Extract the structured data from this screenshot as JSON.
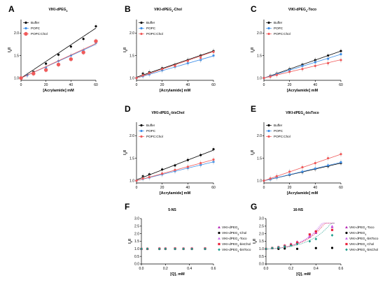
{
  "colors": {
    "buffer": "#000000",
    "popc": "#3d8ee8",
    "popcchol": "#f05a5a",
    "magenta": "#b21fb2",
    "black": "#000000",
    "violet": "#cc66ee",
    "red": "#e8243c",
    "teal": "#1a9c8a"
  },
  "chart_data": [
    {
      "panel": "A",
      "type": "scatter",
      "title": "VIKI-dPEG4",
      "xlabel": "[Acrylamide] mM",
      "ylabel": "I0/I",
      "xlim": [
        0,
        60
      ],
      "ylim": [
        0.95,
        2.3
      ],
      "xticks": [
        "0",
        "20",
        "40",
        "60"
      ],
      "yticks": [
        "1.0",
        "1.5",
        "2.0"
      ],
      "legend_position": "top-left",
      "series": [
        {
          "name": "Buffer",
          "color_key": "buffer",
          "fit": [
            1.0,
            0.0185
          ],
          "marker": "circle",
          "x": [
            0,
            5,
            10,
            20,
            30,
            40,
            50,
            60
          ],
          "y": [
            1.0,
            1.07,
            1.14,
            1.32,
            1.52,
            1.7,
            1.87,
            2.15
          ]
        },
        {
          "name": "POPC",
          "color_key": "popc",
          "fit": [
            1.0,
            0.0125
          ],
          "marker": "circle",
          "x": [
            0,
            5,
            10,
            20,
            30,
            40,
            50,
            60
          ],
          "y": [
            1.0,
            1.06,
            1.1,
            1.23,
            1.38,
            1.5,
            1.62,
            1.78
          ]
        },
        {
          "name": "POPC:Chol",
          "color_key": "popcchol",
          "fit": [
            1.0,
            0.0128
          ],
          "marker": "bigcircle",
          "x": [
            0,
            10,
            20,
            30,
            40,
            50,
            60
          ],
          "y": [
            1.0,
            1.1,
            1.18,
            1.3,
            1.42,
            1.57,
            1.82
          ]
        }
      ]
    },
    {
      "panel": "B",
      "type": "scatter",
      "title": "VIKI-dPEG4-Chol",
      "xlabel": "[Acrylamide] mM",
      "ylabel": "I0/I",
      "xlim": [
        0,
        60
      ],
      "ylim": [
        0.95,
        2.3
      ],
      "xticks": [
        "0",
        "20",
        "40",
        "60"
      ],
      "yticks": [
        "1.0",
        "1.5",
        "2.0"
      ],
      "legend_position": "top-left",
      "series": [
        {
          "name": "Buffer",
          "color_key": "buffer",
          "fit": [
            1.02,
            0.0097
          ],
          "marker": "circle",
          "x": [
            0,
            5,
            10,
            20,
            30,
            40,
            50,
            60
          ],
          "y": [
            1.0,
            1.1,
            1.13,
            1.22,
            1.3,
            1.4,
            1.5,
            1.6
          ]
        },
        {
          "name": "POPC",
          "color_key": "popc",
          "fit": [
            1.0,
            0.0082
          ],
          "marker": "circle",
          "x": [
            0,
            5,
            10,
            20,
            30,
            40,
            50,
            60
          ],
          "y": [
            1.0,
            1.04,
            1.08,
            1.17,
            1.25,
            1.33,
            1.4,
            1.5
          ]
        },
        {
          "name": "POPC:Chol",
          "color_key": "popcchol",
          "fit": [
            1.0,
            0.0098
          ],
          "marker": "circle",
          "x": [
            0,
            5,
            10,
            20,
            30,
            40,
            50,
            60
          ],
          "y": [
            1.0,
            1.06,
            1.11,
            1.2,
            1.27,
            1.38,
            1.45,
            1.58
          ]
        }
      ]
    },
    {
      "panel": "C",
      "type": "scatter",
      "title": "VIKI-dPEG4-Toco",
      "xlabel": "[Acrylamide] mM",
      "ylabel": "I0/I",
      "xlim": [
        0,
        60
      ],
      "ylim": [
        0.95,
        2.3
      ],
      "xticks": [
        "0",
        "20",
        "40",
        "60"
      ],
      "yticks": [
        "1.0",
        "1.5",
        "2.0"
      ],
      "legend_position": "top-left",
      "series": [
        {
          "name": "Buffer",
          "color_key": "buffer",
          "fit": [
            1.0,
            0.01
          ],
          "marker": "circle",
          "x": [
            0,
            5,
            10,
            20,
            30,
            40,
            50,
            60
          ],
          "y": [
            1.0,
            1.05,
            1.1,
            1.2,
            1.3,
            1.4,
            1.5,
            1.6
          ]
        },
        {
          "name": "POPC",
          "color_key": "popc",
          "fit": [
            1.0,
            0.0088
          ],
          "marker": "circle",
          "x": [
            0,
            5,
            10,
            20,
            30,
            40,
            50,
            60
          ],
          "y": [
            1.0,
            1.04,
            1.09,
            1.18,
            1.27,
            1.35,
            1.43,
            1.53
          ]
        },
        {
          "name": "POPC:Chol",
          "color_key": "popcchol",
          "fit": [
            1.0,
            0.0068
          ],
          "marker": "circle",
          "x": [
            0,
            5,
            10,
            20,
            30,
            40,
            50,
            60
          ],
          "y": [
            1.0,
            1.03,
            1.07,
            1.14,
            1.2,
            1.27,
            1.33,
            1.4
          ]
        }
      ]
    },
    {
      "panel": "D",
      "type": "scatter",
      "title": "VIKI-dPEG4-bisChol",
      "xlabel": "[Acrylamide] mM",
      "ylabel": "I0/I",
      "xlim": [
        0,
        60
      ],
      "ylim": [
        0.95,
        2.3
      ],
      "xticks": [
        "0",
        "20",
        "40",
        "60"
      ],
      "yticks": [
        "1.0",
        "1.5",
        "2.0"
      ],
      "legend_position": "top-left",
      "series": [
        {
          "name": "Buffer",
          "color_key": "buffer",
          "fit": [
            1.02,
            0.011
          ],
          "marker": "circle",
          "x": [
            0,
            5,
            10,
            20,
            30,
            40,
            50,
            60
          ],
          "y": [
            1.0,
            1.1,
            1.14,
            1.25,
            1.34,
            1.46,
            1.57,
            1.7
          ]
        },
        {
          "name": "POPC",
          "color_key": "popc",
          "fit": [
            1.0,
            0.007
          ],
          "marker": "circle",
          "x": [
            0,
            5,
            10,
            20,
            30,
            40,
            50,
            60
          ],
          "y": [
            1.0,
            1.04,
            1.07,
            1.14,
            1.21,
            1.28,
            1.35,
            1.42
          ]
        },
        {
          "name": "POPC:Chol",
          "color_key": "popcchol",
          "fit": [
            1.0,
            0.0078
          ],
          "marker": "circle",
          "x": [
            0,
            5,
            10,
            20,
            30,
            40,
            50,
            60
          ],
          "y": [
            1.0,
            1.05,
            1.08,
            1.16,
            1.24,
            1.31,
            1.39,
            1.47
          ]
        }
      ]
    },
    {
      "panel": "E",
      "type": "scatter",
      "title": "VIKI-dPEG4-bisToco",
      "xlabel": "[Acrylamide] mM",
      "ylabel": "I0/I",
      "xlim": [
        0,
        60
      ],
      "ylim": [
        0.95,
        2.3
      ],
      "xticks": [
        "0",
        "20",
        "40",
        "60"
      ],
      "yticks": [
        "1.0",
        "1.5",
        "2.0"
      ],
      "legend_position": "top-left",
      "series": [
        {
          "name": "Buffer",
          "color_key": "buffer",
          "fit": [
            1.0,
            0.0065
          ],
          "marker": "circle",
          "x": [
            0,
            5,
            10,
            20,
            30,
            40,
            50,
            60
          ],
          "y": [
            1.0,
            1.03,
            1.07,
            1.13,
            1.19,
            1.26,
            1.32,
            1.39
          ]
        },
        {
          "name": "POPC",
          "color_key": "popc",
          "fit": [
            1.0,
            0.0068
          ],
          "marker": "circle",
          "x": [
            0,
            5,
            10,
            20,
            30,
            40,
            50,
            60
          ],
          "y": [
            1.0,
            1.03,
            1.07,
            1.14,
            1.2,
            1.27,
            1.34,
            1.41
          ]
        },
        {
          "name": "POPC:Chol",
          "color_key": "popcchol",
          "fit": [
            1.0,
            0.0098
          ],
          "marker": "circle",
          "x": [
            0,
            5,
            10,
            20,
            30,
            40,
            50,
            60
          ],
          "y": [
            1.0,
            1.05,
            1.1,
            1.2,
            1.3,
            1.39,
            1.5,
            1.59
          ]
        }
      ]
    },
    {
      "panel": "F",
      "type": "scatter",
      "title": "5-NS",
      "xlabel": "[Q], mM",
      "ylabel": "I0/I",
      "xlim": [
        0,
        0.6
      ],
      "ylim": [
        0,
        3.0
      ],
      "xticks": [
        "0.0",
        "0.2",
        "0.4",
        "0.6"
      ],
      "yticks": [
        "0.0",
        "0.5",
        "1.0",
        "1.5",
        "2.0",
        "2.5",
        "3.0"
      ],
      "legend_position": "right",
      "series": [
        {
          "name": "VIKI-dPEG4",
          "color_key": "magenta",
          "marker": "triangle",
          "x": [
            0.0,
            0.05,
            0.15,
            0.2,
            0.28,
            0.35,
            0.42,
            0.53
          ],
          "y": [
            1.0,
            1.0,
            1.03,
            1.02,
            1.03,
            1.02,
            1.04,
            1.03
          ]
        },
        {
          "name": "VIKI-dPEG4-Chol",
          "color_key": "black",
          "marker": "circle",
          "x": [
            0.0,
            0.05,
            0.15,
            0.2,
            0.28,
            0.35,
            0.42,
            0.53
          ],
          "y": [
            1.0,
            1.0,
            1.0,
            1.0,
            1.0,
            1.0,
            1.0,
            1.0
          ]
        },
        {
          "name": "VIKI-dPEG4-Toco",
          "color_key": "violet",
          "marker": "triangle",
          "x": [
            0.0,
            0.05,
            0.15,
            0.2,
            0.28,
            0.35,
            0.42,
            0.53
          ],
          "y": [
            1.0,
            1.01,
            1.02,
            1.03,
            1.02,
            1.03,
            1.02,
            1.03
          ]
        },
        {
          "name": "VIKI-dPEG4-bisChol",
          "color_key": "red",
          "marker": "square",
          "x": [
            0.0,
            0.05,
            0.15,
            0.2,
            0.28,
            0.35,
            0.42,
            0.53
          ],
          "y": [
            1.0,
            1.0,
            1.01,
            1.01,
            1.02,
            1.01,
            1.01,
            1.02
          ]
        },
        {
          "name": "VIKI-dPEG4-bisToco",
          "color_key": "teal",
          "marker": "diamond",
          "x": [
            0.0,
            0.05,
            0.15,
            0.2,
            0.28,
            0.35,
            0.42,
            0.53
          ],
          "y": [
            1.0,
            1.0,
            0.99,
            1.0,
            1.0,
            1.0,
            0.99,
            1.0
          ]
        }
      ]
    },
    {
      "panel": "G",
      "type": "scatter",
      "title": "16-NS",
      "xlabel": "[Q], mM",
      "ylabel": "I0/I",
      "xlim": [
        0,
        0.6
      ],
      "ylim": [
        0,
        3.0
      ],
      "xticks": [
        "0.0",
        "0.2",
        "0.4",
        "0.6"
      ],
      "yticks": [
        "0.0",
        "0.5",
        "1.0",
        "1.5",
        "2.0",
        "2.5",
        "3.0"
      ],
      "legend_position": "right",
      "series": [
        {
          "name": "VIKI-dPEG4-Toco",
          "color_key": "magenta",
          "marker": "triangle",
          "fitk": 2.6,
          "x": [
            0.0,
            0.05,
            0.1,
            0.15,
            0.2,
            0.25,
            0.35,
            0.4,
            0.53
          ],
          "y": [
            1.0,
            1.06,
            1.12,
            1.22,
            1.3,
            1.45,
            1.8,
            2.05,
            2.45
          ]
        },
        {
          "name": "VIKI-dPEG4",
          "color_key": "black",
          "marker": "circle",
          "x": [
            0.0,
            0.1,
            0.15,
            0.25,
            0.4,
            0.53
          ],
          "y": [
            1.0,
            1.0,
            1.02,
            1.0,
            1.05,
            1.06
          ]
        },
        {
          "name": "VIKI-dPEG4-bisToco",
          "color_key": "violet",
          "marker": "triangle",
          "fitk": 2.75,
          "x": [
            0.0,
            0.05,
            0.1,
            0.15,
            0.2,
            0.25,
            0.35,
            0.4,
            0.53
          ],
          "y": [
            1.0,
            1.05,
            1.13,
            1.24,
            1.34,
            1.48,
            1.85,
            2.1,
            2.5
          ]
        },
        {
          "name": "VIKI-dPEG4-Chol",
          "color_key": "red",
          "marker": "square",
          "fitk": 2.45,
          "x": [
            0.0,
            0.05,
            0.1,
            0.15,
            0.2,
            0.25,
            0.35,
            0.4,
            0.53
          ],
          "y": [
            1.0,
            1.05,
            1.1,
            1.2,
            1.28,
            1.42,
            1.95,
            2.15,
            2.25
          ]
        },
        {
          "name": "VIKI-dPEG4-bisChol",
          "color_key": "teal",
          "marker": "diamond",
          "fitk": 2.0,
          "x": [
            0.0,
            0.05,
            0.1,
            0.15,
            0.2,
            0.25,
            0.35,
            0.4,
            0.53
          ],
          "y": [
            1.0,
            1.05,
            1.09,
            1.16,
            1.22,
            1.32,
            1.5,
            1.65,
            1.9
          ]
        }
      ]
    }
  ]
}
